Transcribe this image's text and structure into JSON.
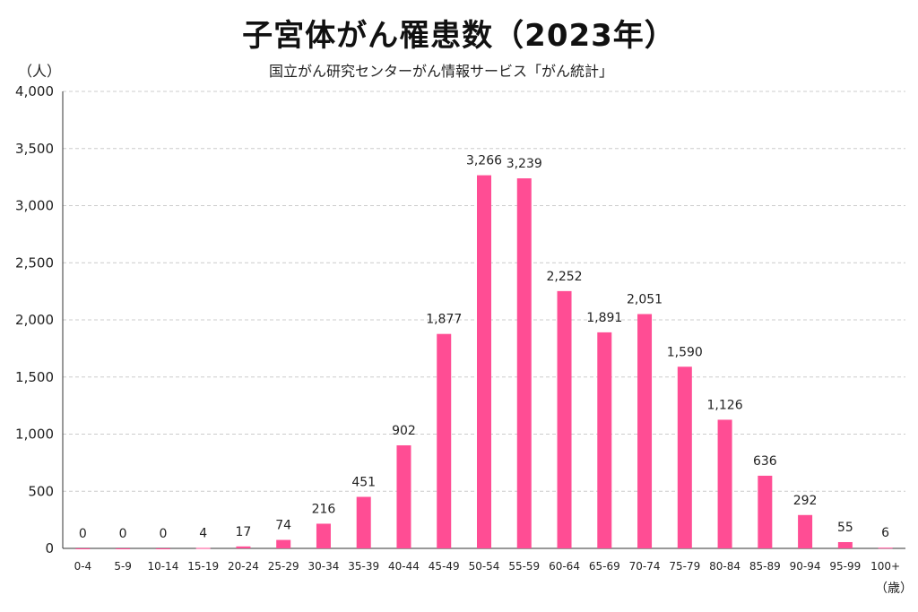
{
  "title": "子宮体がん罹患数（2023年）",
  "source": "国立がん研究センターがん情報サービス「がん統計」",
  "y_unit": "（人）",
  "x_unit": "（歳）",
  "colors": {
    "bar": "#ff4d94",
    "grid": "#cccccc",
    "axis": "#333333"
  },
  "chart_data": {
    "type": "bar",
    "title": "子宮体がん罹患数（2023年）",
    "xlabel": "（歳）",
    "ylabel": "（人）",
    "ylim": [
      0,
      4000
    ],
    "yticks": [
      0,
      500,
      1000,
      1500,
      2000,
      2500,
      3000,
      3500,
      4000
    ],
    "ytick_labels": [
      "0",
      "500",
      "1,000",
      "1,500",
      "2,000",
      "2,500",
      "3,000",
      "3,500",
      "4,000"
    ],
    "grid": true,
    "categories": [
      "0-4",
      "5-9",
      "10-14",
      "15-19",
      "20-24",
      "25-29",
      "30-34",
      "35-39",
      "40-44",
      "45-49",
      "50-54",
      "55-59",
      "60-64",
      "65-69",
      "70-74",
      "75-79",
      "80-84",
      "85-89",
      "90-94",
      "95-99",
      "100+"
    ],
    "values": [
      0,
      0,
      0,
      4,
      17,
      74,
      216,
      451,
      902,
      1877,
      3266,
      3239,
      2252,
      1891,
      2051,
      1590,
      1126,
      636,
      292,
      55,
      6
    ],
    "data_labels": [
      "0",
      "0",
      "0",
      "4",
      "17",
      "74",
      "216",
      "451",
      "902",
      "1,877",
      "3,266",
      "3,239",
      "2,252",
      "1,891",
      "2,051",
      "1,590",
      "1,126",
      "636",
      "292",
      "55",
      "6"
    ]
  }
}
